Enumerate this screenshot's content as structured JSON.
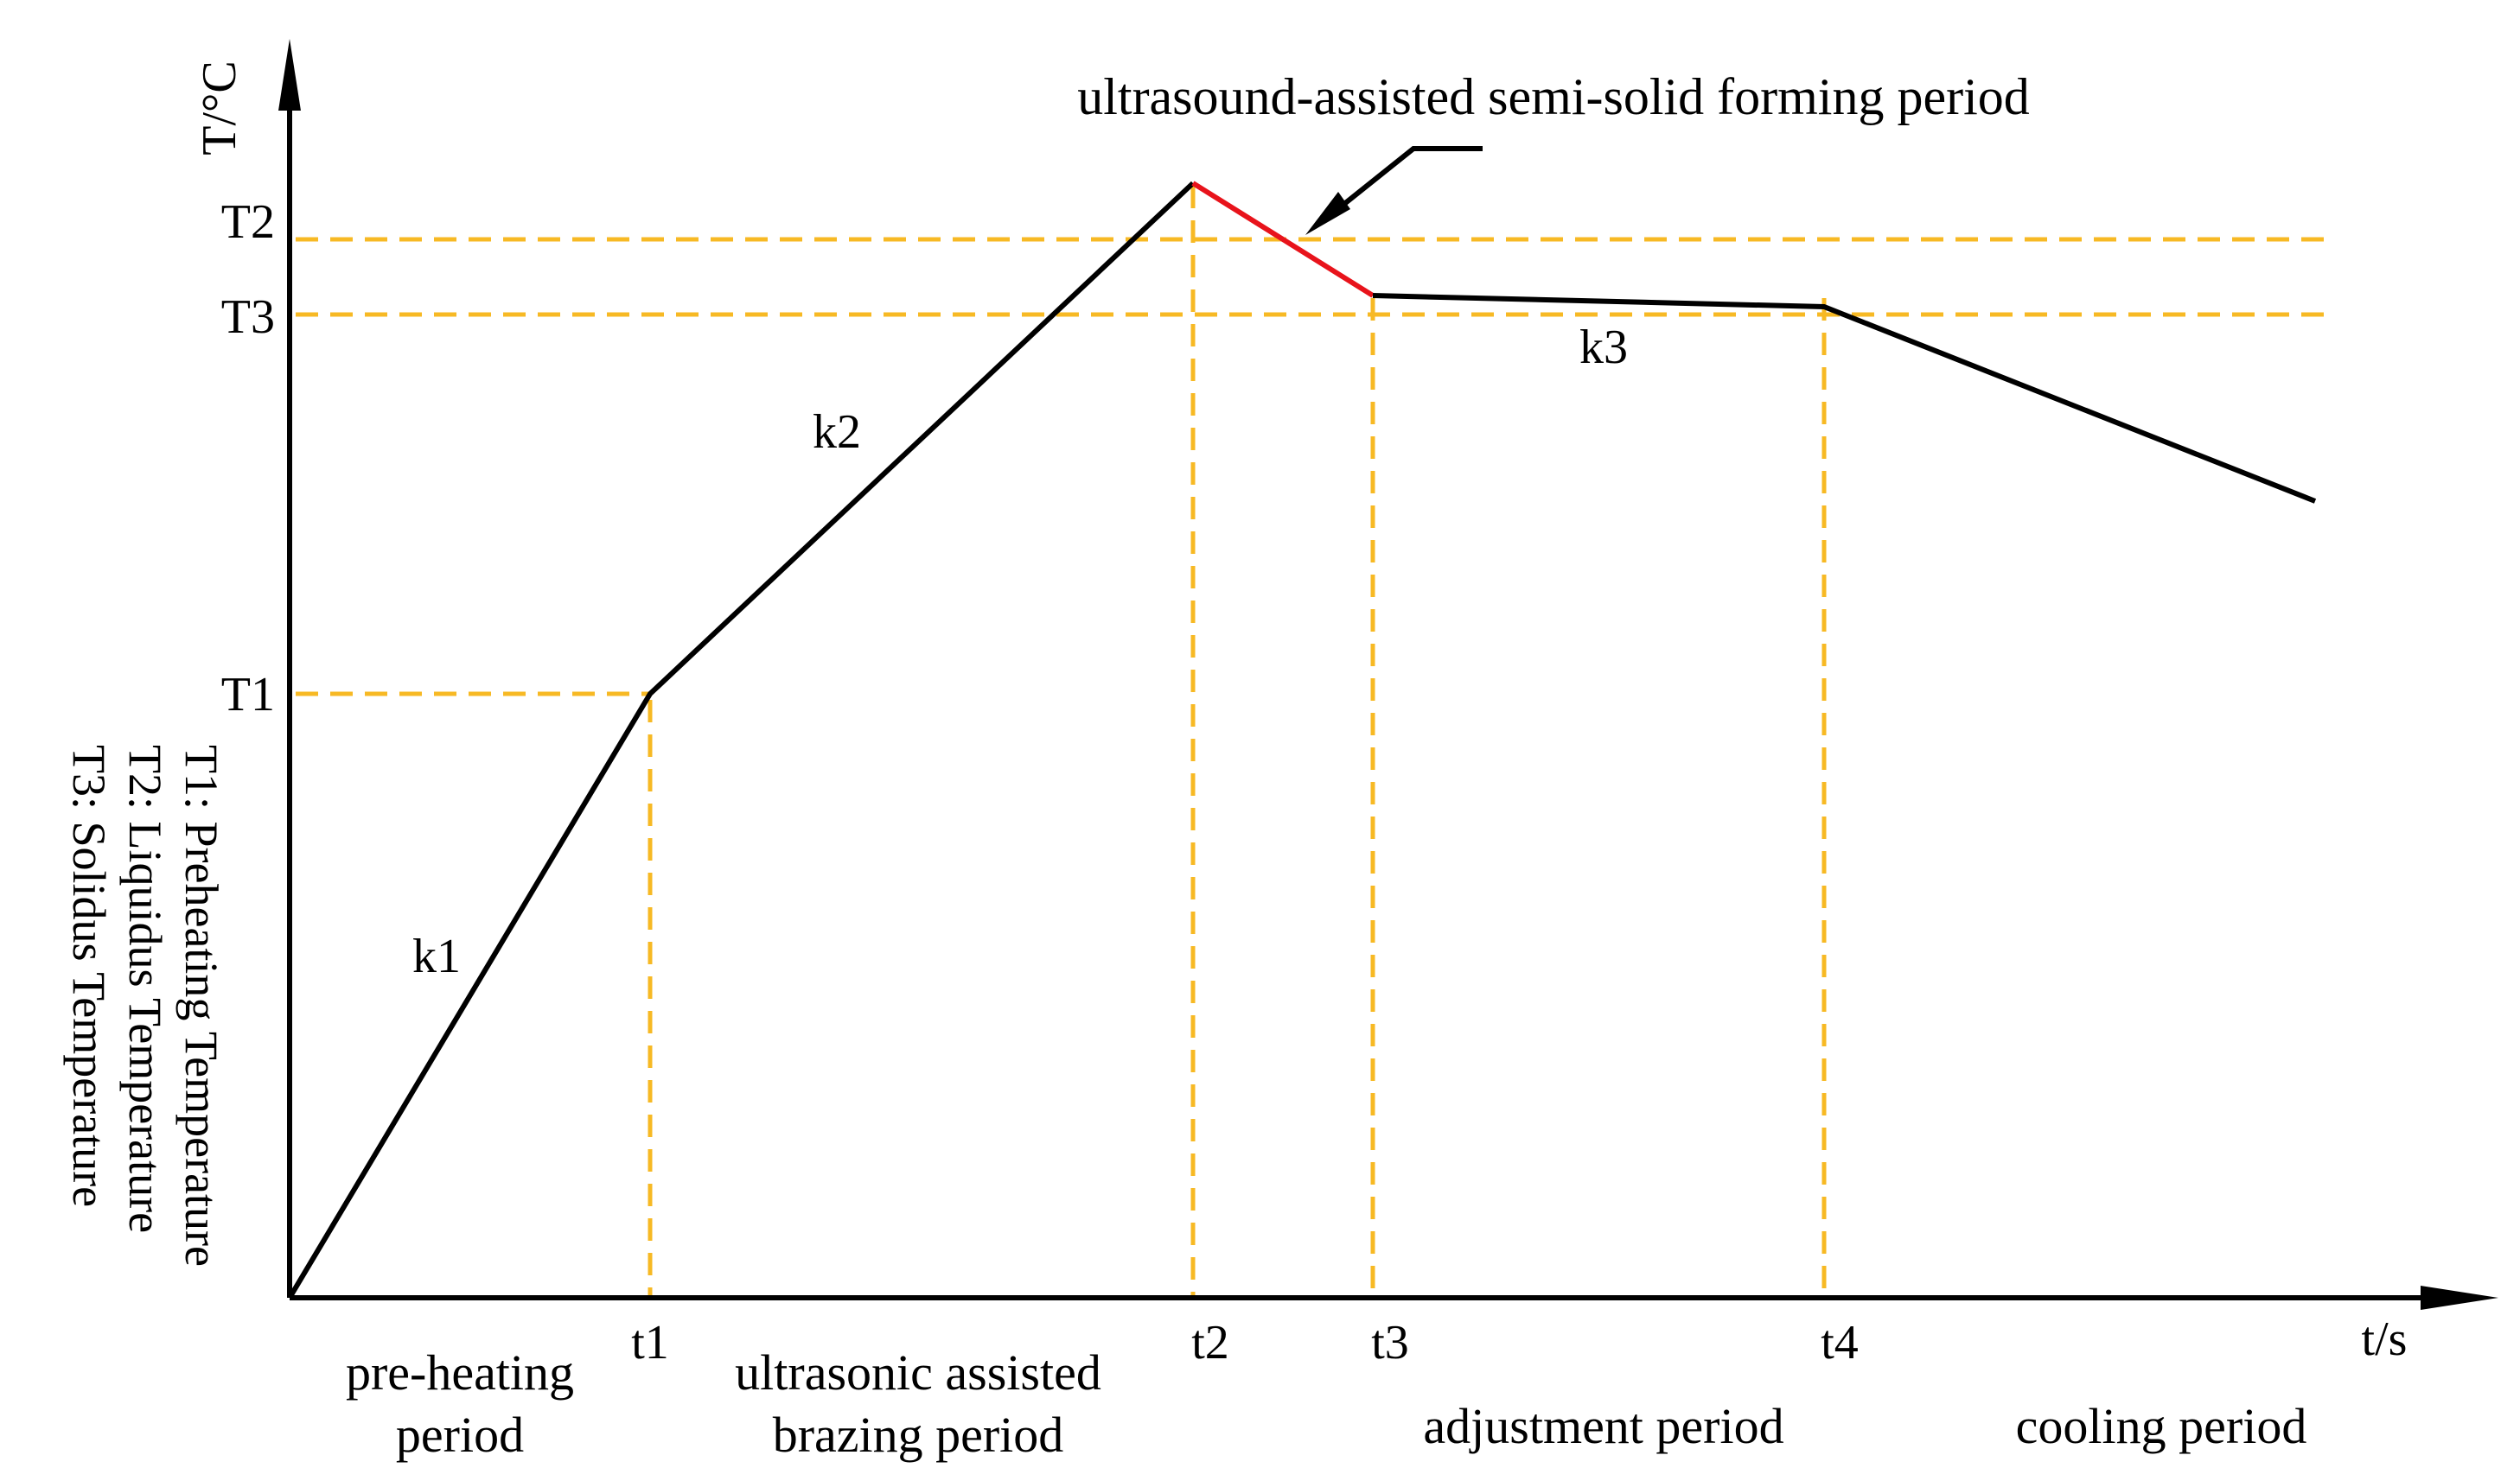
{
  "axes": {
    "y_label": "T/°C",
    "x_label": "t/s",
    "axis_color": "#000000"
  },
  "temperatures": {
    "T1": "T1",
    "T2": "T2",
    "T3": "T3"
  },
  "times": {
    "t1": "t1",
    "t2": "t2",
    "t3": "t3",
    "t4": "t4"
  },
  "slopes": {
    "k1": "k1",
    "k2": "k2",
    "k3": "k3"
  },
  "periods": {
    "preheating_line1": "pre-heating",
    "preheating_line2": "period",
    "brazing_line1": "ultrasonic assisted",
    "brazing_line2": "brazing period",
    "adjustment": "adjustment period",
    "cooling": "cooling period"
  },
  "callout": {
    "text": "ultrasound-assisted semi-solid forming period"
  },
  "legend": {
    "line1": "T1: Preheating Temperature",
    "line2": "T2: Liquidus Temperature",
    "line3": "T3: Solidus Temperature"
  },
  "colors": {
    "curve": "#000000",
    "highlight_segment": "#e8131b",
    "guide_lines": "#f7b924",
    "arrow": "#000000"
  }
}
